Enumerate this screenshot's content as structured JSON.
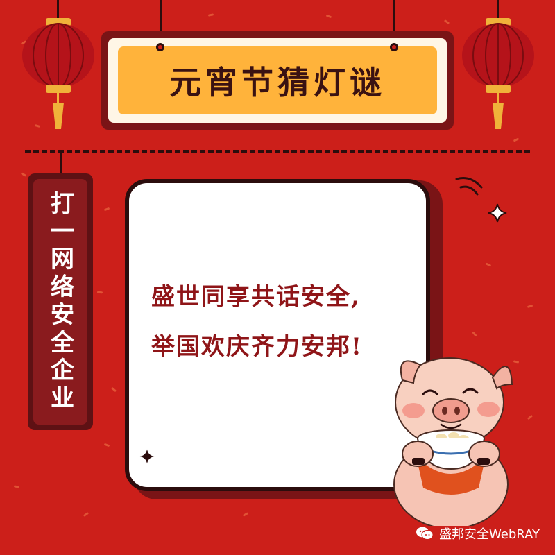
{
  "title": "元宵节猜灯谜",
  "hint": "打一网络安全企业",
  "riddle": {
    "line1": "盛世同享共话安全,",
    "line2": "举国欢庆齐力安邦!"
  },
  "watermark": "盛邦安全WebRAY",
  "colors": {
    "background": "#cc1f1a",
    "title_plate": "#ffb33b",
    "riddle_text": "#8f1518",
    "dark_border": "#2b0d0d"
  }
}
